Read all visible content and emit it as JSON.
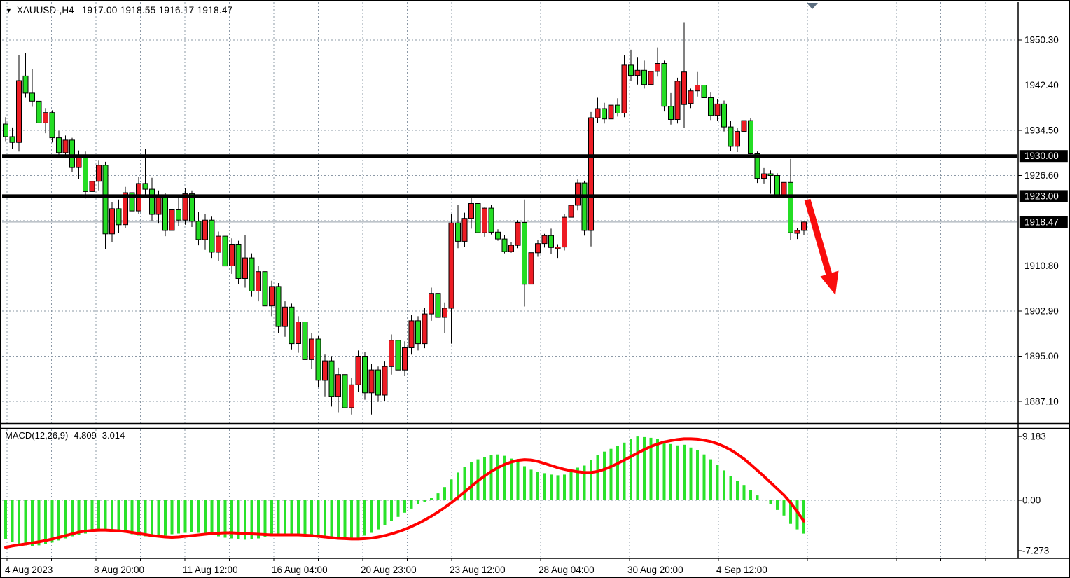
{
  "window": {
    "title_symbol": "XAUUSD-,H4",
    "title_ohlc": "1917.00 1918.55 1916.17 1918.47",
    "dropdown_glyph": "▼"
  },
  "chart_data": {
    "type": "candlestick+macd",
    "symbol": "XAUUSD",
    "timeframe": "H4",
    "current_bar": {
      "open": 1917.0,
      "high": 1918.55,
      "low": 1916.17,
      "close": 1918.47
    },
    "price_axis": {
      "gridline_prices": [
        1950.3,
        1942.4,
        1934.5,
        1926.6,
        1918.7,
        1910.8,
        1902.9,
        1895.0,
        1887.1
      ],
      "labels": [
        "1950.30",
        "1942.40",
        "1934.50",
        "1926.60",
        "1910.80",
        "1902.90",
        "1895.00",
        "1887.10"
      ],
      "label_prices": [
        1950.3,
        1942.4,
        1934.5,
        1926.6,
        1910.8,
        1902.9,
        1895.0,
        1887.1
      ],
      "badges": [
        {
          "text": "1930.00",
          "price": 1930.0
        },
        {
          "text": "1923.00",
          "price": 1923.0
        },
        {
          "text": "1918.47",
          "price": 1918.47
        }
      ]
    },
    "time_axis": {
      "labels": [
        "4 Aug 2023",
        "8 Aug 20:00",
        "11 Aug 12:00",
        "16 Aug 04:00",
        "20 Aug 23:00",
        "23 Aug 12:00",
        "28 Aug 04:00",
        "30 Aug 20:00",
        "4 Sep 12:00"
      ]
    },
    "hlines": [
      {
        "name": "resistance-1930",
        "price": 1930.0
      },
      {
        "name": "support-1923",
        "price": 1923.0
      }
    ],
    "current_price": 1918.47,
    "candles": [
      [
        1935.6,
        1936.8,
        1932.6,
        1933.4
      ],
      [
        1933.4,
        1935.0,
        1931.2,
        1932.4
      ],
      [
        1932.4,
        1947.6,
        1930.8,
        1943.2
      ],
      [
        1944.0,
        1948.0,
        1940.2,
        1941.0
      ],
      [
        1941.0,
        1945.2,
        1938.6,
        1939.6
      ],
      [
        1939.6,
        1941.0,
        1934.6,
        1935.8
      ],
      [
        1935.8,
        1938.4,
        1934.0,
        1937.6
      ],
      [
        1937.6,
        1938.0,
        1932.4,
        1933.2
      ],
      [
        1933.2,
        1934.4,
        1929.6,
        1930.6
      ],
      [
        1930.6,
        1933.6,
        1929.8,
        1932.8
      ],
      [
        1932.8,
        1933.2,
        1927.2,
        1928.0
      ],
      [
        1928.0,
        1931.0,
        1926.0,
        1930.2
      ],
      [
        1930.2,
        1930.8,
        1922.6,
        1923.8
      ],
      [
        1923.8,
        1927.0,
        1921.0,
        1925.6
      ],
      [
        1925.6,
        1929.2,
        1924.0,
        1928.4
      ],
      [
        1928.4,
        1929.0,
        1913.8,
        1916.4
      ],
      [
        1916.4,
        1922.0,
        1915.0,
        1920.8
      ],
      [
        1920.8,
        1922.4,
        1916.6,
        1918.0
      ],
      [
        1918.0,
        1924.6,
        1917.4,
        1923.6
      ],
      [
        1923.6,
        1925.0,
        1919.2,
        1920.4
      ],
      [
        1920.4,
        1926.4,
        1919.8,
        1925.2
      ],
      [
        1925.2,
        1931.2,
        1923.0,
        1924.2
      ],
      [
        1924.2,
        1926.2,
        1918.6,
        1919.8
      ],
      [
        1919.8,
        1924.0,
        1918.2,
        1923.0
      ],
      [
        1923.0,
        1923.6,
        1916.0,
        1917.0
      ],
      [
        1917.0,
        1921.6,
        1915.2,
        1920.6
      ],
      [
        1920.6,
        1922.8,
        1917.8,
        1918.8
      ],
      [
        1918.8,
        1924.4,
        1918.0,
        1923.4
      ],
      [
        1923.4,
        1924.0,
        1917.6,
        1918.6
      ],
      [
        1918.6,
        1920.2,
        1914.4,
        1915.4
      ],
      [
        1915.4,
        1919.8,
        1913.6,
        1918.8
      ],
      [
        1918.8,
        1919.4,
        1912.2,
        1913.2
      ],
      [
        1913.2,
        1916.8,
        1911.6,
        1916.0
      ],
      [
        1916.0,
        1917.0,
        1909.8,
        1910.8
      ],
      [
        1910.8,
        1915.6,
        1909.4,
        1914.6
      ],
      [
        1914.6,
        1915.2,
        1907.6,
        1908.6
      ],
      [
        1908.6,
        1916.2,
        1907.0,
        1912.2
      ],
      [
        1912.2,
        1913.0,
        1905.4,
        1906.4
      ],
      [
        1906.4,
        1910.8,
        1904.6,
        1909.8
      ],
      [
        1909.8,
        1910.4,
        1902.8,
        1903.8
      ],
      [
        1903.8,
        1908.2,
        1902.0,
        1907.2
      ],
      [
        1907.2,
        1907.8,
        1899.0,
        1900.2
      ],
      [
        1900.2,
        1904.6,
        1898.4,
        1903.6
      ],
      [
        1903.6,
        1904.2,
        1896.2,
        1897.2
      ],
      [
        1897.2,
        1902.0,
        1895.6,
        1901.0
      ],
      [
        1901.0,
        1901.8,
        1893.2,
        1894.4
      ],
      [
        1894.4,
        1899.0,
        1892.8,
        1898.0
      ],
      [
        1898.0,
        1898.6,
        1889.6,
        1890.8
      ],
      [
        1890.8,
        1895.4,
        1888.0,
        1894.2
      ],
      [
        1894.2,
        1895.0,
        1886.2,
        1888.0
      ],
      [
        1888.0,
        1893.0,
        1885.2,
        1891.8
      ],
      [
        1891.8,
        1892.6,
        1884.6,
        1886.0
      ],
      [
        1886.0,
        1891.2,
        1884.8,
        1890.0
      ],
      [
        1890.0,
        1896.0,
        1888.8,
        1895.0
      ],
      [
        1895.0,
        1895.8,
        1887.4,
        1888.6
      ],
      [
        1888.6,
        1893.6,
        1884.8,
        1892.6
      ],
      [
        1892.6,
        1893.2,
        1887.0,
        1888.2
      ],
      [
        1888.2,
        1894.2,
        1887.2,
        1893.2
      ],
      [
        1893.2,
        1898.8,
        1891.8,
        1897.8
      ],
      [
        1897.8,
        1898.6,
        1891.4,
        1892.6
      ],
      [
        1892.6,
        1897.6,
        1891.6,
        1896.6
      ],
      [
        1896.6,
        1902.2,
        1895.4,
        1901.2
      ],
      [
        1901.2,
        1902.0,
        1896.0,
        1897.2
      ],
      [
        1897.2,
        1903.4,
        1896.4,
        1902.4
      ],
      [
        1902.4,
        1907.0,
        1901.2,
        1906.0
      ],
      [
        1906.0,
        1906.8,
        1900.6,
        1901.8
      ],
      [
        1901.8,
        1904.4,
        1899.0,
        1903.4
      ],
      [
        1903.4,
        1919.8,
        1897.2,
        1918.3
      ],
      [
        1918.3,
        1921.5,
        1913.9,
        1915.1
      ],
      [
        1915.1,
        1920.1,
        1914.1,
        1919.1
      ],
      [
        1919.1,
        1922.7,
        1917.3,
        1921.7
      ],
      [
        1921.7,
        1922.3,
        1916.1,
        1916.6
      ],
      [
        1916.6,
        1921.0,
        1915.9,
        1920.9
      ],
      [
        1920.9,
        1921.4,
        1916.3,
        1916.7
      ],
      [
        1916.7,
        1917.2,
        1915.2,
        1915.5
      ],
      [
        1915.5,
        1916.2,
        1913.0,
        1913.3
      ],
      [
        1913.3,
        1915.0,
        1913.1,
        1914.4
      ],
      [
        1914.4,
        1918.8,
        1913.9,
        1918.4
      ],
      [
        1918.4,
        1922.4,
        1903.7,
        1907.6
      ],
      [
        1907.6,
        1913.4,
        1906.9,
        1913.1
      ],
      [
        1913.1,
        1915.4,
        1912.4,
        1914.7
      ],
      [
        1914.7,
        1916.4,
        1914.0,
        1916.1
      ],
      [
        1916.1,
        1917.3,
        1912.9,
        1914.0
      ],
      [
        1913.8,
        1914.6,
        1912.2,
        1914.1
      ],
      [
        1914.1,
        1919.9,
        1913.5,
        1919.3
      ],
      [
        1919.3,
        1921.9,
        1918.3,
        1921.4
      ],
      [
        1921.4,
        1925.9,
        1920.5,
        1925.3
      ],
      [
        1925.3,
        1925.7,
        1916.1,
        1917.0
      ],
      [
        1917.0,
        1937.7,
        1914.2,
        1936.7
      ],
      [
        1936.7,
        1940.2,
        1935.8,
        1938.3
      ],
      [
        1938.3,
        1939.3,
        1935.7,
        1936.5
      ],
      [
        1936.5,
        1939.7,
        1935.9,
        1938.9
      ],
      [
        1938.9,
        1940.1,
        1936.9,
        1937.5
      ],
      [
        1937.5,
        1947.7,
        1936.8,
        1945.9
      ],
      [
        1945.9,
        1948.6,
        1943.2,
        1944.1
      ],
      [
        1944.1,
        1947.2,
        1942.5,
        1945.0
      ],
      [
        1945.0,
        1946.7,
        1941.8,
        1942.5
      ],
      [
        1942.5,
        1945.5,
        1941.9,
        1944.8
      ],
      [
        1944.8,
        1949.0,
        1943.9,
        1946.2
      ],
      [
        1946.2,
        1946.7,
        1937.8,
        1938.7
      ],
      [
        1938.7,
        1941.0,
        1935.5,
        1936.4
      ],
      [
        1936.4,
        1943.7,
        1935.7,
        1943.1
      ],
      [
        1939.0,
        1953.3,
        1934.9,
        1944.7
      ],
      [
        1939.2,
        1941.8,
        1938.4,
        1941.4
      ],
      [
        1941.4,
        1944.7,
        1940.4,
        1942.4
      ],
      [
        1942.4,
        1943.1,
        1939.6,
        1940.2
      ],
      [
        1940.2,
        1941.1,
        1936.3,
        1937.1
      ],
      [
        1937.1,
        1939.9,
        1936.1,
        1939.1
      ],
      [
        1939.1,
        1939.7,
        1934.3,
        1935.1
      ],
      [
        1935.1,
        1936.1,
        1930.9,
        1931.7
      ],
      [
        1931.7,
        1934.9,
        1930.7,
        1934.3
      ],
      [
        1934.3,
        1936.6,
        1933.7,
        1936.2
      ],
      [
        1936.2,
        1936.6,
        1929.8,
        1930.4
      ],
      [
        1930.4,
        1930.8,
        1925.3,
        1926.1
      ],
      [
        1926.1,
        1927.9,
        1925.2,
        1926.9
      ],
      [
        1926.9,
        1927.5,
        1923.4,
        1926.6
      ],
      [
        1926.6,
        1927.0,
        1922.9,
        1923.2
      ],
      [
        1923.2,
        1925.8,
        1922.5,
        1925.4
      ],
      [
        1925.4,
        1929.5,
        1915.3,
        1916.6
      ],
      [
        1916.5,
        1917.4,
        1915.5,
        1917.0
      ],
      [
        1917.0,
        1918.55,
        1916.17,
        1918.47
      ]
    ],
    "macd": {
      "label": "MACD(12,26,9) -4.809 -3.014",
      "main_value": -4.809,
      "signal_value": -3.014,
      "axis_labels": [
        "9.183",
        "0.00",
        "-7.273"
      ],
      "axis_values": [
        9.183,
        0,
        -7.273
      ],
      "histogram": [
        -5.6,
        -6.0,
        -6.3,
        -6.5,
        -6.6,
        -6.5,
        -6.3,
        -6.1,
        -5.8,
        -5.5,
        -5.2,
        -5.0,
        -4.8,
        -4.6,
        -4.5,
        -4.4,
        -4.4,
        -4.5,
        -4.7,
        -4.9,
        -5.1,
        -5.2,
        -5.3,
        -5.2,
        -5.1,
        -4.9,
        -4.8,
        -4.7,
        -4.6,
        -4.7,
        -4.8,
        -5.0,
        -5.2,
        -5.4,
        -5.5,
        -5.6,
        -5.7,
        -5.6,
        -5.5,
        -5.3,
        -5.2,
        -5.1,
        -5.0,
        -5.0,
        -5.1,
        -5.2,
        -5.3,
        -5.4,
        -5.5,
        -5.6,
        -5.7,
        -5.7,
        -5.6,
        -5.4,
        -5.1,
        -4.7,
        -4.2,
        -3.6,
        -3.0,
        -2.4,
        -1.8,
        -1.2,
        -0.6,
        -0.2,
        0.3,
        1.0,
        1.9,
        3.0,
        4.0,
        4.8,
        5.5,
        5.9,
        6.2,
        6.5,
        6.6,
        6.4,
        6.0,
        5.5,
        4.9,
        4.4,
        4.1,
        3.9,
        3.7,
        3.6,
        3.7,
        4.1,
        4.7,
        5.0,
        5.8,
        6.5,
        7.0,
        7.4,
        7.8,
        8.3,
        8.8,
        9.18,
        9.1,
        9.0,
        8.8,
        8.5,
        8.1,
        7.9,
        8.0,
        7.6,
        7.2,
        6.6,
        5.9,
        5.1,
        4.3,
        3.5,
        2.8,
        2.2,
        1.5,
        0.7,
        0.1,
        -0.6,
        -1.4,
        -2.2,
        -3.4,
        -4.2,
        -4.809
      ],
      "signal": [
        -6.8,
        -6.6,
        -6.45,
        -6.3,
        -6.15,
        -6.0,
        -5.8,
        -5.6,
        -5.35,
        -5.1,
        -4.85,
        -4.6,
        -4.45,
        -4.35,
        -4.3,
        -4.3,
        -4.35,
        -4.4,
        -4.5,
        -4.65,
        -4.8,
        -4.95,
        -5.1,
        -5.2,
        -5.3,
        -5.35,
        -5.3,
        -5.2,
        -5.1,
        -5.0,
        -4.9,
        -4.8,
        -4.75,
        -4.7,
        -4.7,
        -4.75,
        -4.8,
        -4.85,
        -4.9,
        -4.95,
        -5.0,
        -5.0,
        -5.0,
        -5.0,
        -5.0,
        -5.05,
        -5.1,
        -5.2,
        -5.3,
        -5.4,
        -5.5,
        -5.55,
        -5.6,
        -5.6,
        -5.55,
        -5.45,
        -5.3,
        -5.1,
        -4.85,
        -4.55,
        -4.2,
        -3.8,
        -3.35,
        -2.85,
        -2.3,
        -1.7,
        -1.05,
        -0.35,
        0.4,
        1.2,
        2.0,
        2.8,
        3.5,
        4.15,
        4.7,
        5.15,
        5.5,
        5.75,
        5.85,
        5.8,
        5.6,
        5.3,
        5.0,
        4.7,
        4.45,
        4.25,
        4.1,
        4.0,
        4.0,
        4.15,
        4.45,
        4.85,
        5.3,
        5.8,
        6.3,
        6.8,
        7.3,
        7.75,
        8.1,
        8.4,
        8.6,
        8.75,
        8.85,
        8.85,
        8.8,
        8.65,
        8.45,
        8.15,
        7.75,
        7.25,
        6.65,
        5.95,
        5.15,
        4.3,
        3.45,
        2.55,
        1.65,
        0.75,
        -0.35,
        -1.65,
        -3.014
      ]
    },
    "annotations": {
      "arrow": {
        "type": "down-arrow",
        "from_price": 1922.9,
        "to_price": 1906.0
      }
    },
    "colors": {
      "bull_candle": "#ed1c24",
      "bear_candle": "#24dd24",
      "macd_bar": "#2ae22a",
      "signal_line": "#ff0000",
      "grid": "#8b98a6",
      "sr_line": "#000000",
      "arrow": "#f90d0d",
      "badge_bg": "#000000",
      "badge_text": "#ffffff",
      "current_price_line": "#a9b1b9",
      "shift_marker": "#5c6e80",
      "text": "#000000",
      "background": "#ffffff"
    }
  }
}
